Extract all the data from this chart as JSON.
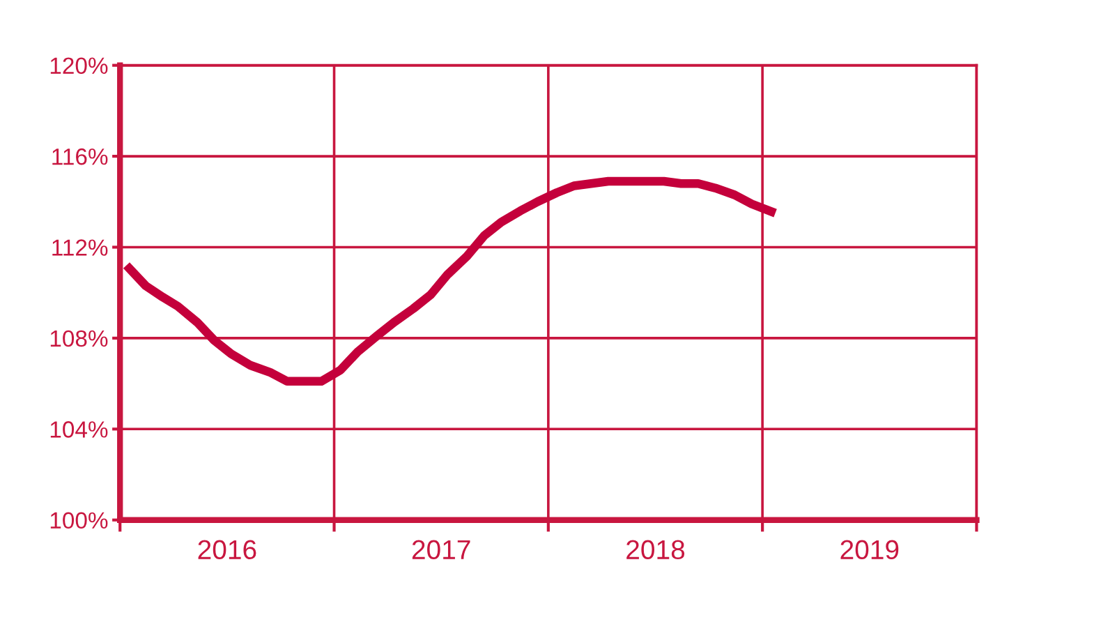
{
  "chart_data": {
    "type": "line",
    "x": [
      2016.03,
      2016.12,
      2016.2,
      2016.27,
      2016.36,
      2016.44,
      2016.52,
      2016.61,
      2016.7,
      2016.78,
      2016.87,
      2016.94,
      2017.03,
      2017.11,
      2017.2,
      2017.28,
      2017.37,
      2017.45,
      2017.53,
      2017.62,
      2017.7,
      2017.78,
      2017.87,
      2017.95,
      2018.04,
      2018.12,
      2018.2,
      2018.28,
      2018.37,
      2018.45,
      2018.54,
      2018.62,
      2018.7,
      2018.78,
      2018.87,
      2018.95,
      2019.06
    ],
    "series": [
      {
        "color": "#c4003b",
        "values": [
          111.2,
          110.3,
          109.8,
          109.4,
          108.7,
          107.9,
          107.3,
          106.8,
          106.5,
          106.1,
          106.1,
          106.1,
          106.6,
          107.4,
          108.1,
          108.7,
          109.3,
          109.9,
          110.8,
          111.6,
          112.5,
          113.1,
          113.6,
          114.0,
          114.4,
          114.7,
          114.8,
          114.9,
          114.9,
          114.9,
          114.9,
          114.8,
          114.8,
          114.6,
          114.3,
          113.9,
          113.5
        ]
      }
    ],
    "xlim": [
      2016,
      2020
    ],
    "xticks": [
      {
        "value": 2016,
        "label": null
      },
      {
        "value": 2016.5,
        "label": "2016"
      },
      {
        "value": 2017,
        "label": null
      },
      {
        "value": 2017.5,
        "label": "2017"
      },
      {
        "value": 2018,
        "label": null
      },
      {
        "value": 2018.5,
        "label": "2018"
      },
      {
        "value": 2019,
        "label": null
      },
      {
        "value": 2019.5,
        "label": "2019"
      },
      {
        "value": 2020,
        "label": null
      }
    ],
    "ylim": [
      100,
      120
    ],
    "yticks": [
      {
        "value": 100,
        "label": "100%"
      },
      {
        "value": 104,
        "label": "104%"
      },
      {
        "value": 108,
        "label": "108%"
      },
      {
        "value": 112,
        "label": "112%"
      },
      {
        "value": 116,
        "label": "116%"
      },
      {
        "value": 120,
        "label": "120%"
      }
    ],
    "grid": true,
    "marker": "none",
    "line_style": "solid",
    "legend": false
  }
}
